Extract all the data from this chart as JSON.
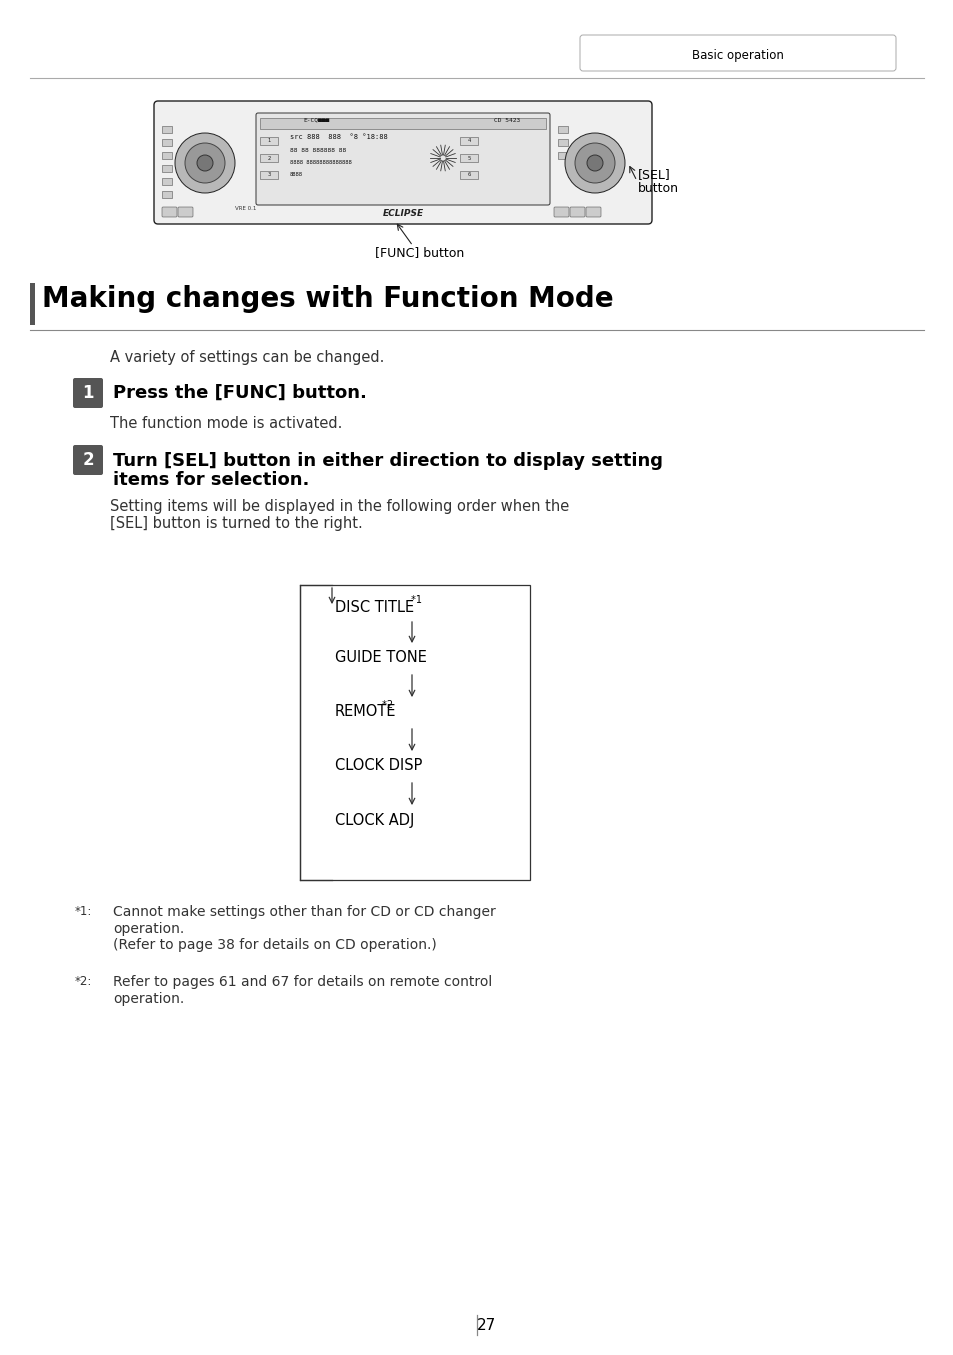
{
  "bg_color": "#ffffff",
  "header_text": "Basic operation",
  "title": "Making changes with Function Mode",
  "title_bar_color": "#555555",
  "intro_text": "A variety of settings can be changed.",
  "step1_num": "1",
  "step1_text": "Press the [FUNC] button.",
  "step1_subtext": "The function mode is activated.",
  "step2_num": "2",
  "step2_text_line1": "Turn [SEL] button in either direction to display setting",
  "step2_text_line2": "items for selection.",
  "step2_subtext_line1": "Setting items will be displayed in the following order when the",
  "step2_subtext_line2": "[SEL] button is turned to the right.",
  "flow_items": [
    "DISC TITLE *1",
    "GUIDE TONE",
    "REMOTE *2",
    "CLOCK DISP",
    "CLOCK ADJ"
  ],
  "flow_superscripts": [
    "1",
    null,
    "2",
    null,
    null
  ],
  "note1_label": "*1:",
  "note1_line1": "Cannot make settings other than for CD or CD changer",
  "note1_line2": "operation.",
  "note1_line3": "(Refer to page 38 for details on CD operation.)",
  "note2_label": "*2:",
  "note2_line1": "Refer to pages 61 and 67 for details on remote control",
  "note2_line2": "operation.",
  "page_number": "27",
  "step_badge_color": "#555555",
  "step_badge_text_color": "#ffffff",
  "text_color": "#000000",
  "gray_text_color": "#333333",
  "line_color": "#888888"
}
